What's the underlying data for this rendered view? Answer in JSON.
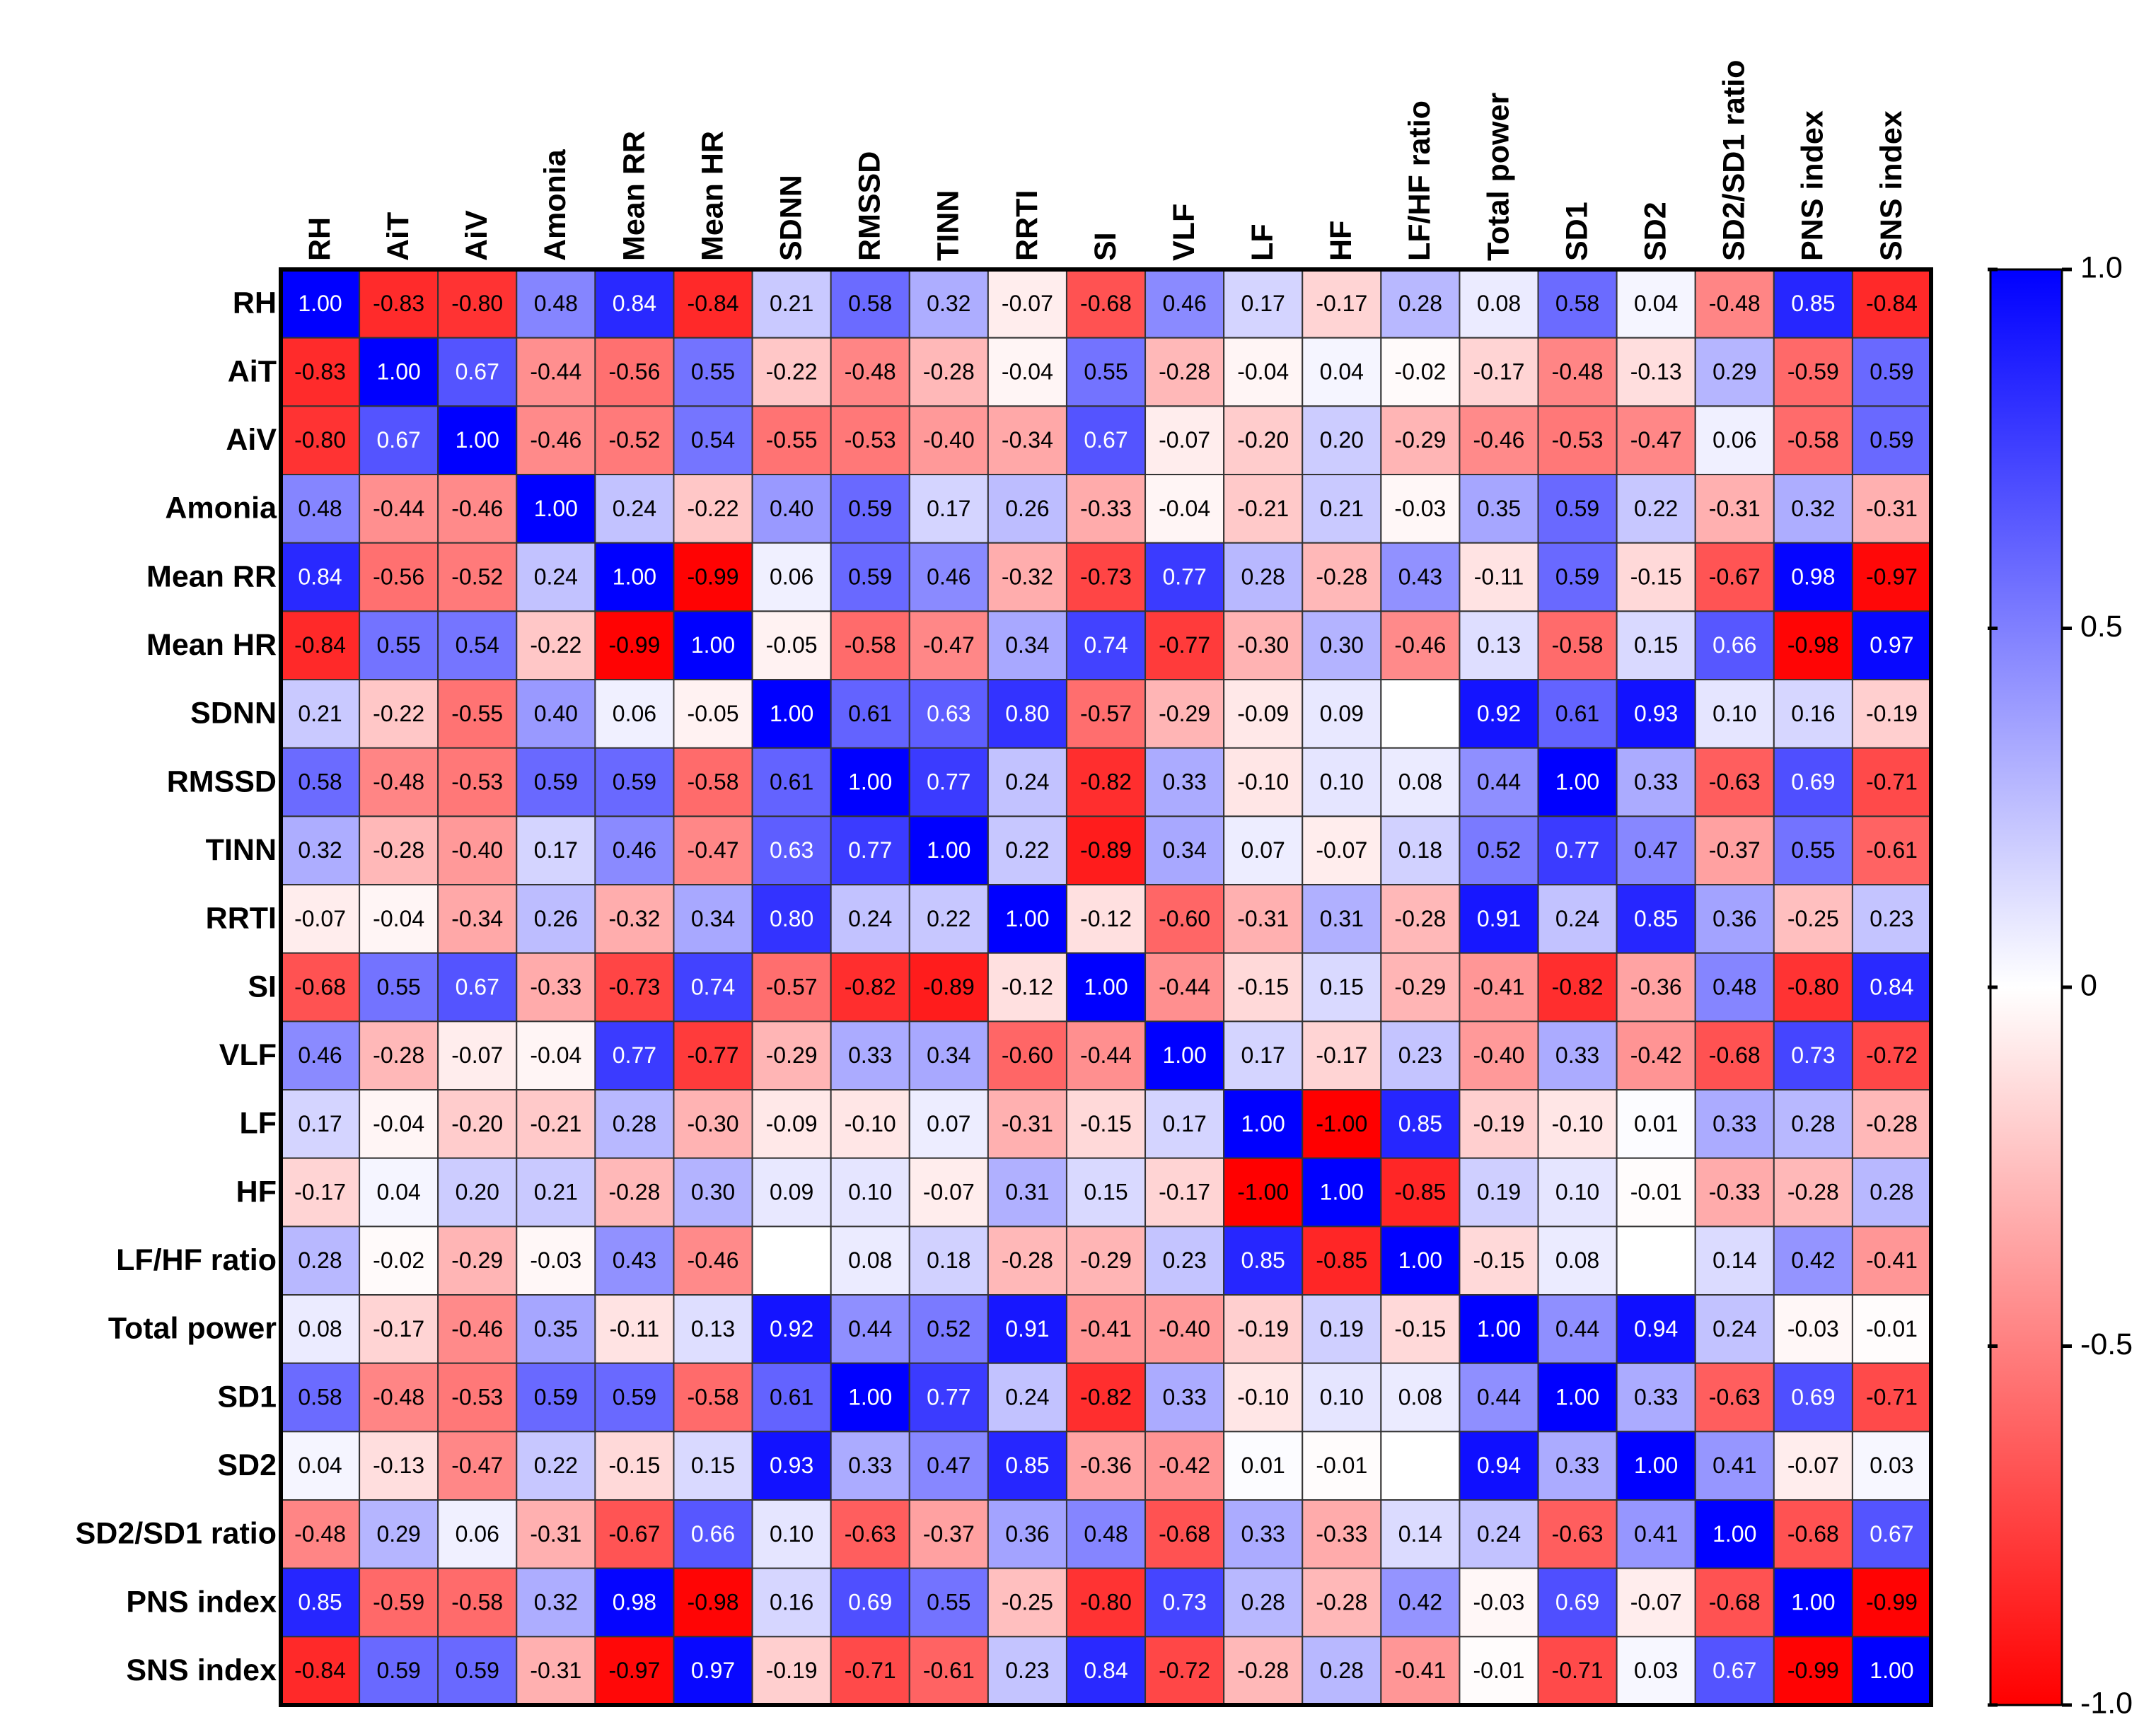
{
  "chart_data": {
    "type": "heatmap",
    "categories": [
      "RH",
      "AiT",
      "AiV",
      "Amonia",
      "Mean RR",
      "Mean HR",
      "SDNN",
      "RMSSD",
      "TINN",
      "RRTI",
      "SI",
      "VLF",
      "LF",
      "HF",
      "LF/HF ratio",
      "Total power",
      "SD1",
      "SD2",
      "SD2/SD1 ratio",
      "PNS index",
      "SNS index"
    ],
    "values": [
      [
        1.0,
        -0.83,
        -0.8,
        0.48,
        0.84,
        -0.84,
        0.21,
        0.58,
        0.32,
        -0.07,
        -0.68,
        0.46,
        0.17,
        -0.17,
        0.28,
        0.08,
        0.58,
        0.04,
        -0.48,
        0.85,
        -0.84
      ],
      [
        -0.83,
        1.0,
        0.67,
        -0.44,
        -0.56,
        0.55,
        -0.22,
        -0.48,
        -0.28,
        -0.04,
        0.55,
        -0.28,
        -0.04,
        0.04,
        -0.02,
        -0.17,
        -0.48,
        -0.13,
        0.29,
        -0.59,
        0.59
      ],
      [
        -0.8,
        0.67,
        1.0,
        -0.46,
        -0.52,
        0.54,
        -0.55,
        -0.53,
        -0.4,
        -0.34,
        0.67,
        -0.07,
        -0.2,
        0.2,
        -0.29,
        -0.46,
        -0.53,
        -0.47,
        0.06,
        -0.58,
        0.59
      ],
      [
        0.48,
        -0.44,
        -0.46,
        1.0,
        0.24,
        -0.22,
        0.4,
        0.59,
        0.17,
        0.26,
        -0.33,
        -0.04,
        -0.21,
        0.21,
        -0.03,
        0.35,
        0.59,
        0.22,
        -0.31,
        0.32,
        -0.31
      ],
      [
        0.84,
        -0.56,
        -0.52,
        0.24,
        1.0,
        -0.99,
        0.06,
        0.59,
        0.46,
        -0.32,
        -0.73,
        0.77,
        0.28,
        -0.28,
        0.43,
        -0.11,
        0.59,
        -0.15,
        -0.67,
        0.98,
        -0.97
      ],
      [
        -0.84,
        0.55,
        0.54,
        -0.22,
        -0.99,
        1.0,
        -0.05,
        -0.58,
        -0.47,
        0.34,
        0.74,
        -0.77,
        -0.3,
        0.3,
        -0.46,
        0.13,
        -0.58,
        0.15,
        0.66,
        -0.98,
        0.97
      ],
      [
        0.21,
        -0.22,
        -0.55,
        0.4,
        0.06,
        -0.05,
        1.0,
        0.61,
        0.63,
        0.8,
        -0.57,
        -0.29,
        -0.09,
        0.09,
        null,
        0.92,
        0.61,
        0.93,
        0.1,
        0.16,
        -0.19
      ],
      [
        0.58,
        -0.48,
        -0.53,
        0.59,
        0.59,
        -0.58,
        0.61,
        1.0,
        0.77,
        0.24,
        -0.82,
        0.33,
        -0.1,
        0.1,
        0.08,
        0.44,
        1.0,
        0.33,
        -0.63,
        0.69,
        -0.71
      ],
      [
        0.32,
        -0.28,
        -0.4,
        0.17,
        0.46,
        -0.47,
        0.63,
        0.77,
        1.0,
        0.22,
        -0.89,
        0.34,
        0.07,
        -0.07,
        0.18,
        0.52,
        0.77,
        0.47,
        -0.37,
        0.55,
        -0.61
      ],
      [
        -0.07,
        -0.04,
        -0.34,
        0.26,
        -0.32,
        0.34,
        0.8,
        0.24,
        0.22,
        1.0,
        -0.12,
        -0.6,
        -0.31,
        0.31,
        -0.28,
        0.91,
        0.24,
        0.85,
        0.36,
        -0.25,
        0.23
      ],
      [
        -0.68,
        0.55,
        0.67,
        -0.33,
        -0.73,
        0.74,
        -0.57,
        -0.82,
        -0.89,
        -0.12,
        1.0,
        -0.44,
        -0.15,
        0.15,
        -0.29,
        -0.41,
        -0.82,
        -0.36,
        0.48,
        -0.8,
        0.84
      ],
      [
        0.46,
        -0.28,
        -0.07,
        -0.04,
        0.77,
        -0.77,
        -0.29,
        0.33,
        0.34,
        -0.6,
        -0.44,
        1.0,
        0.17,
        -0.17,
        0.23,
        -0.4,
        0.33,
        -0.42,
        -0.68,
        0.73,
        -0.72
      ],
      [
        0.17,
        -0.04,
        -0.2,
        -0.21,
        0.28,
        -0.3,
        -0.09,
        -0.1,
        0.07,
        -0.31,
        -0.15,
        0.17,
        1.0,
        -1.0,
        0.85,
        -0.19,
        -0.1,
        0.01,
        0.33,
        0.28,
        -0.28
      ],
      [
        -0.17,
        0.04,
        0.2,
        0.21,
        -0.28,
        0.3,
        0.09,
        0.1,
        -0.07,
        0.31,
        0.15,
        -0.17,
        -1.0,
        1.0,
        -0.85,
        0.19,
        0.1,
        -0.01,
        -0.33,
        -0.28,
        0.28
      ],
      [
        0.28,
        -0.02,
        -0.29,
        -0.03,
        0.43,
        -0.46,
        null,
        0.08,
        0.18,
        -0.28,
        -0.29,
        0.23,
        0.85,
        -0.85,
        1.0,
        -0.15,
        0.08,
        null,
        0.14,
        0.42,
        -0.41
      ],
      [
        0.08,
        -0.17,
        -0.46,
        0.35,
        -0.11,
        0.13,
        0.92,
        0.44,
        0.52,
        0.91,
        -0.41,
        -0.4,
        -0.19,
        0.19,
        -0.15,
        1.0,
        0.44,
        0.94,
        0.24,
        -0.03,
        -0.01
      ],
      [
        0.58,
        -0.48,
        -0.53,
        0.59,
        0.59,
        -0.58,
        0.61,
        1.0,
        0.77,
        0.24,
        -0.82,
        0.33,
        -0.1,
        0.1,
        0.08,
        0.44,
        1.0,
        0.33,
        -0.63,
        0.69,
        -0.71
      ],
      [
        0.04,
        -0.13,
        -0.47,
        0.22,
        -0.15,
        0.15,
        0.93,
        0.33,
        0.47,
        0.85,
        -0.36,
        -0.42,
        0.01,
        -0.01,
        null,
        0.94,
        0.33,
        1.0,
        0.41,
        -0.07,
        0.03
      ],
      [
        -0.48,
        0.29,
        0.06,
        -0.31,
        -0.67,
        0.66,
        0.1,
        -0.63,
        -0.37,
        0.36,
        0.48,
        -0.68,
        0.33,
        -0.33,
        0.14,
        0.24,
        -0.63,
        0.41,
        1.0,
        -0.68,
        0.67
      ],
      [
        0.85,
        -0.59,
        -0.58,
        0.32,
        0.98,
        -0.98,
        0.16,
        0.69,
        0.55,
        -0.25,
        -0.8,
        0.73,
        0.28,
        -0.28,
        0.42,
        -0.03,
        0.69,
        -0.07,
        -0.68,
        1.0,
        -0.99
      ],
      [
        -0.84,
        0.59,
        0.59,
        -0.31,
        -0.97,
        0.97,
        -0.19,
        -0.71,
        -0.61,
        0.23,
        0.84,
        -0.72,
        -0.28,
        0.28,
        -0.41,
        -0.01,
        -0.71,
        0.03,
        0.67,
        -0.99,
        1.0
      ]
    ],
    "value_labels": [
      [
        "1.00",
        "-0.83",
        "-0.80",
        "0.48",
        "0.84",
        "-0.84",
        "0.21",
        "0.58",
        "0.32",
        "-0.07",
        "-0.68",
        "0.46",
        "0.17",
        "-0.17",
        "0.28",
        "0.08",
        "0.58",
        "0.04",
        "-0.48",
        "0.85",
        "-0.84"
      ],
      [
        "-0.83",
        "1.00",
        "0.67",
        "-0.44",
        "-0.56",
        "0.55",
        "-0.22",
        "-0.48",
        "-0.28",
        "-0.04",
        "0.55",
        "-0.28",
        "-0.04",
        "0.04",
        "-0.02",
        "-0.17",
        "-0.48",
        "-0.13",
        "0.29",
        "-0.59",
        "0.59"
      ],
      [
        "-0.80",
        "0.67",
        "1.00",
        "-0.46",
        "-0.52",
        "0.54",
        "-0.55",
        "-0.53",
        "-0.40",
        "-0.34",
        "0.67",
        "-0.07",
        "-0.20",
        "0.20",
        "-0.29",
        "-0.46",
        "-0.53",
        "-0.47",
        "0.06",
        "-0.58",
        "0.59"
      ],
      [
        "0.48",
        "-0.44",
        "-0.46",
        "1.00",
        "0.24",
        "-0.22",
        "0.40",
        "0.59",
        "0.17",
        "0.26",
        "-0.33",
        "-0.04",
        "-0.21",
        "0.21",
        "-0.03",
        "0.35",
        "0.59",
        "0.22",
        "-0.31",
        "0.32",
        "-0.31"
      ],
      [
        "0.84",
        "-0.56",
        "-0.52",
        "0.24",
        "1.00",
        "-0.99",
        "0.06",
        "0.59",
        "0.46",
        "-0.32",
        "-0.73",
        "0.77",
        "0.28",
        "-0.28",
        "0.43",
        "-0.11",
        "0.59",
        "-0.15",
        "-0.67",
        "0.98",
        "-0.97"
      ],
      [
        "-0.84",
        "0.55",
        "0.54",
        "-0.22",
        "-0.99",
        "1.00",
        "-0.05",
        "-0.58",
        "-0.47",
        "0.34",
        "0.74",
        "-0.77",
        "-0.30",
        "0.30",
        "-0.46",
        "0.13",
        "-0.58",
        "0.15",
        "0.66",
        "-0.98",
        "0.97"
      ],
      [
        "0.21",
        "-0.22",
        "-0.55",
        "0.40",
        "0.06",
        "-0.05",
        "1.00",
        "0.61",
        "0.63",
        "0.80",
        "-0.57",
        "-0.29",
        "-0.09",
        "0.09",
        null,
        "0.92",
        "0.61",
        "0.93",
        "0.10",
        "0.16",
        "-0.19"
      ],
      [
        "0.58",
        "-0.48",
        "-0.53",
        "0.59",
        "0.59",
        "-0.58",
        "0.61",
        "1.00",
        "0.77",
        "0.24",
        "-0.82",
        "0.33",
        "-0.10",
        "0.10",
        "0.08",
        "0.44",
        "1.00",
        "0.33",
        "-0.63",
        "0.69",
        "-0.71"
      ],
      [
        "0.32",
        "-0.28",
        "-0.40",
        "0.17",
        "0.46",
        "-0.47",
        "0.63",
        "0.77",
        "1.00",
        "0.22",
        "-0.89",
        "0.34",
        "0.07",
        "-0.07",
        "0.18",
        "0.52",
        "0.77",
        "0.47",
        "-0.37",
        "0.55",
        "-0.61"
      ],
      [
        "-0.07",
        "-0.04",
        "-0.34",
        "0.26",
        "-0.32",
        "0.34",
        "0.80",
        "0.24",
        "0.22",
        "1.00",
        "-0.12",
        "-0.60",
        "-0.31",
        "0.31",
        "-0.28",
        "0.91",
        "0.24",
        "0.85",
        "0.36",
        "-0.25",
        "0.23"
      ],
      [
        "-0.68",
        "0.55",
        "0.67",
        "-0.33",
        "-0.73",
        "0.74",
        "-0.57",
        "-0.82",
        "-0.89",
        "-0.12",
        "1.00",
        "-0.44",
        "-0.15",
        "0.15",
        "-0.29",
        "-0.41",
        "-0.82",
        "-0.36",
        "0.48",
        "-0.80",
        "0.84"
      ],
      [
        "0.46",
        "-0.28",
        "-0.07",
        "-0.04",
        "0.77",
        "-0.77",
        "-0.29",
        "0.33",
        "0.34",
        "-0.60",
        "-0.44",
        "1.00",
        "0.17",
        "-0.17",
        "0.23",
        "-0.40",
        "0.33",
        "-0.42",
        "-0.68",
        "0.73",
        "-0.72"
      ],
      [
        "0.17",
        "-0.04",
        "-0.20",
        "-0.21",
        "0.28",
        "-0.30",
        "-0.09",
        "-0.10",
        "0.07",
        "-0.31",
        "-0.15",
        "0.17",
        "1.00",
        "-1.00",
        "0.85",
        "-0.19",
        "-0.10",
        "0.01",
        "0.33",
        "0.28",
        "-0.28"
      ],
      [
        "-0.17",
        "0.04",
        "0.20",
        "0.21",
        "-0.28",
        "0.30",
        "0.09",
        "0.10",
        "-0.07",
        "0.31",
        "0.15",
        "-0.17",
        "-1.00",
        "1.00",
        "-0.85",
        "0.19",
        "0.10",
        "-0.01",
        "-0.33",
        "-0.28",
        "0.28"
      ],
      [
        "0.28",
        "-0.02",
        "-0.29",
        "-0.03",
        "0.43",
        "-0.46",
        null,
        "0.08",
        "0.18",
        "-0.28",
        "-0.29",
        "0.23",
        "0.85",
        "-0.85",
        "1.00",
        "-0.15",
        "0.08",
        null,
        "0.14",
        "0.42",
        "-0.41"
      ],
      [
        "0.08",
        "-0.17",
        "-0.46",
        "0.35",
        "-0.11",
        "0.13",
        "0.92",
        "0.44",
        "0.52",
        "0.91",
        "-0.41",
        "-0.40",
        "-0.19",
        "0.19",
        "-0.15",
        "1.00",
        "0.44",
        "0.94",
        "0.24",
        "-0.03",
        "-0.01"
      ],
      [
        "0.58",
        "-0.48",
        "-0.53",
        "0.59",
        "0.59",
        "-0.58",
        "0.61",
        "1.00",
        "0.77",
        "0.24",
        "-0.82",
        "0.33",
        "-0.10",
        "0.10",
        "0.08",
        "0.44",
        "1.00",
        "0.33",
        "-0.63",
        "0.69",
        "-0.71"
      ],
      [
        "0.04",
        "-0.13",
        "-0.47",
        "0.22",
        "-0.15",
        "0.15",
        "0.93",
        "0.33",
        "0.47",
        "0.85",
        "-0.36",
        "-0.42",
        "0.01",
        "-0.01",
        null,
        "0.94",
        "0.33",
        "1.00",
        "0.41",
        "-0.07",
        "0.03"
      ],
      [
        "-0.48",
        "0.29",
        "0.06",
        "-0.31",
        "-0.67",
        "0.66",
        "0.10",
        "-0.63",
        "-0.37",
        "0.36",
        "0.48",
        "-0.68",
        "0.33",
        "-0.33",
        "0.14",
        "0.24",
        "-0.63",
        "0.41",
        "1.00",
        "-0.68",
        "0.67"
      ],
      [
        "0.85",
        "-0.59",
        "-0.58",
        "0.32",
        "0.98",
        "-0.98",
        "0.16",
        "0.69",
        "0.55",
        "-0.25",
        "-0.80",
        "0.73",
        "0.28",
        "-0.28",
        "0.42",
        "-0.03",
        "0.69",
        "-0.07",
        "-0.68",
        "1.00",
        "-0.99"
      ],
      [
        "-0.84",
        "0.59",
        "0.59",
        "-0.31",
        "-0.97",
        "0.97",
        "-0.19",
        "-0.71",
        "-0.61",
        "0.23",
        "0.84",
        "-0.72",
        "-0.28",
        "0.28",
        "-0.41",
        "-0.01",
        "-0.71",
        "0.03",
        "0.67",
        "-0.99",
        "1.00"
      ]
    ],
    "zlim": [
      -1,
      1
    ],
    "colors": [
      "#ff0000",
      "#ffffff",
      "#0000ff"
    ],
    "zticks": [
      {
        "value": -1,
        "label": "-1.0"
      },
      -0.5,
      0,
      0.5,
      {
        "value": 1,
        "label": "1.0"
      }
    ]
  }
}
